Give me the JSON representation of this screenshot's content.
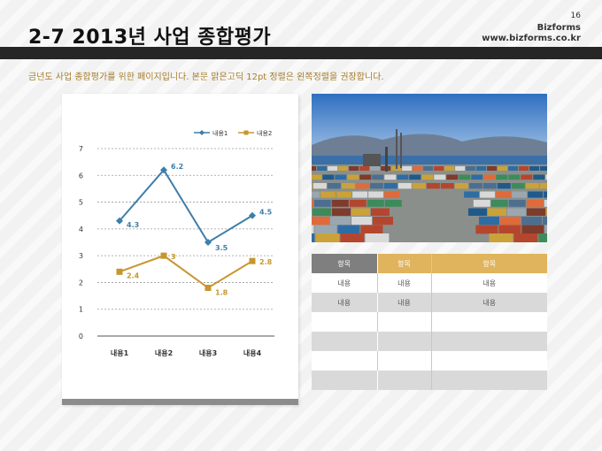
{
  "header": {
    "title": "2-7 2013년 사업 종합평가",
    "slide_number": "16",
    "brand": "Bizforms",
    "url": "www.bizforms.co.kr"
  },
  "subtitle": "금년도 사업 종합평가를 위한 페이지입니다. 본문 맑은고딕 12pt 정렬은 왼쪽정렬을 권장합니다.",
  "chart_data": {
    "type": "line",
    "categories": [
      "내용1",
      "내용2",
      "내용3",
      "내용4"
    ],
    "series": [
      {
        "name": "내용1",
        "values": [
          4.3,
          6.2,
          3.5,
          4.5
        ],
        "color": "#3d7eaa",
        "marker": "diamond"
      },
      {
        "name": "내용2",
        "values": [
          2.4,
          3,
          1.8,
          2.8
        ],
        "color": "#c8962e",
        "marker": "square"
      }
    ],
    "ylim": [
      0,
      7
    ],
    "yticks": [
      "0",
      "1",
      "2",
      "3",
      "4",
      "5",
      "6",
      "7"
    ],
    "grid": true,
    "legend": "top-right"
  },
  "table": {
    "headers": [
      "항목",
      "항목",
      "항목"
    ],
    "rows": [
      [
        "내용",
        "내용",
        "내용"
      ],
      [
        "내용",
        "내용",
        "내용"
      ],
      [
        "",
        "",
        ""
      ],
      [
        "",
        "",
        ""
      ],
      [
        "",
        "",
        ""
      ],
      [
        "",
        "",
        ""
      ]
    ]
  },
  "colors": {
    "accent_gold": "#e0b45c",
    "header_gray": "#7f7f7f",
    "dark_bar": "#262626",
    "subtitle_text": "#a67c2a"
  }
}
